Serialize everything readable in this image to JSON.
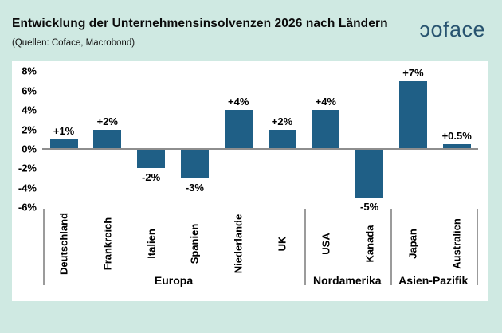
{
  "header": {
    "title": "Entwicklung der Unternehmensinsolvenzen 2026 nach Ländern",
    "subtitle": "(Quellen: Coface, Macrobond)",
    "logo_text": "coface"
  },
  "colors": {
    "background": "#cfe9e2",
    "panel": "#ffffff",
    "bar": "#1f5f86",
    "axis_line": "#8e8e8e",
    "logo": "#27536f"
  },
  "chart_data": {
    "type": "bar",
    "title": "Entwicklung der Unternehmensinsolvenzen 2026 nach Ländern",
    "xlabel": "",
    "ylabel": "",
    "ylim": [
      -6,
      8
    ],
    "grid": false,
    "legend": null,
    "categories": [
      "Deutschland",
      "Frankreich",
      "Italien",
      "Spanien",
      "Niederlande",
      "UK",
      "USA",
      "Kanada",
      "Japan",
      "Australien"
    ],
    "values": [
      1,
      2,
      -2,
      -3,
      4,
      2,
      4,
      -5,
      7,
      0.5
    ],
    "value_labels": [
      "+1%",
      "+2%",
      "-2%",
      "-3%",
      "+4%",
      "+2%",
      "+4%",
      "-5%",
      "+7%",
      "+0.5%"
    ],
    "y_ticks": [
      "8%",
      "6%",
      "4%",
      "2%",
      "0%",
      "-2%",
      "-4%",
      "-6%"
    ],
    "y_tick_values": [
      8,
      6,
      4,
      2,
      0,
      -2,
      -4,
      -6
    ],
    "groups": [
      {
        "label": "Europa",
        "span": [
          0,
          5
        ]
      },
      {
        "label": "Nordamerika",
        "span": [
          6,
          7
        ]
      },
      {
        "label": "Asien-Pazifik",
        "span": [
          8,
          9
        ]
      }
    ]
  }
}
